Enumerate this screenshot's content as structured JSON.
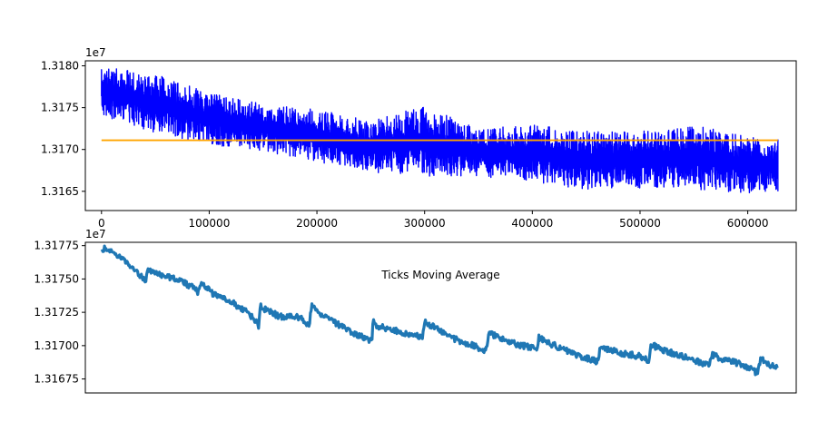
{
  "chart_data": [
    {
      "type": "line",
      "title": "",
      "xlabel": "",
      "ylabel": "",
      "offset_label": "1e7",
      "xlim": [
        -15000,
        645000
      ],
      "ylim": [
        1.31627,
        1.31806
      ],
      "x_ticks": [
        0,
        100000,
        200000,
        300000,
        400000,
        500000,
        600000
      ],
      "x_tick_labels": [
        "0",
        "100000",
        "200000",
        "300000",
        "400000",
        "500000",
        "600000"
      ],
      "y_ticks": [
        1.3165,
        1.317,
        1.3175,
        1.318
      ],
      "y_tick_labels": [
        "1.3165",
        "1.3170",
        "1.3175",
        "1.3180"
      ],
      "grid": false,
      "series": [
        {
          "color": "#0000ff",
          "style": "band",
          "x": [
            0,
            50000,
            100000,
            150000,
            200000,
            250000,
            300000,
            350000,
            400000,
            450000,
            500000,
            550000,
            600000,
            628000
          ],
          "low": [
            1.3174,
            1.3172,
            1.31706,
            1.31698,
            1.31685,
            1.31672,
            1.31668,
            1.31668,
            1.3166,
            1.31652,
            1.31654,
            1.31652,
            1.31648,
            1.3165
          ],
          "high": [
            1.318,
            1.3179,
            1.31768,
            1.31755,
            1.31748,
            1.31735,
            1.31752,
            1.31725,
            1.3173,
            1.31722,
            1.31722,
            1.3173,
            1.31715,
            1.31712
          ]
        },
        {
          "color": "#ffa500",
          "style": "line",
          "x": [
            0,
            628000
          ],
          "y": [
            1.31711,
            1.31711
          ]
        }
      ]
    },
    {
      "type": "line",
      "title": "Ticks Moving Average",
      "xlabel": "",
      "ylabel": "",
      "offset_label": "1e7",
      "xlim": [
        -15000,
        645000
      ],
      "ylim": [
        1.316645,
        1.317775
      ],
      "y_ticks": [
        1.31675,
        1.317,
        1.31725,
        1.3175,
        1.31775
      ],
      "y_tick_labels": [
        "1.31675",
        "1.31700",
        "1.31725",
        "1.31750",
        "1.31775"
      ],
      "grid": false,
      "series": [
        {
          "color": "#1f77b4",
          "x": [
            0,
            3000,
            10000,
            20000,
            30000,
            40000,
            41000,
            42000,
            45000,
            55000,
            70000,
            88000,
            89000,
            91000,
            95000,
            105000,
            120000,
            135000,
            145000,
            146000,
            147000,
            150000,
            165000,
            185000,
            192000,
            193000,
            195000,
            200000,
            215000,
            230000,
            250000,
            251000,
            252000,
            255000,
            270000,
            290000,
            297000,
            298000,
            300000,
            310000,
            325000,
            345000,
            356000,
            357000,
            360000,
            370000,
            385000,
            403000,
            404000,
            406000,
            415000,
            430000,
            445000,
            460000,
            461000,
            463000,
            470000,
            485000,
            500000,
            507000,
            508000,
            510000,
            520000,
            535000,
            550000,
            563000,
            564000,
            567000,
            580000,
            595000,
            608000,
            609000,
            612000,
            620000,
            628000
          ],
          "y": [
            1.31772,
            1.31773,
            1.3177,
            1.31765,
            1.31757,
            1.3175,
            1.31745,
            1.31755,
            1.31756,
            1.31753,
            1.3175,
            1.31742,
            1.31738,
            1.31746,
            1.31745,
            1.31738,
            1.31733,
            1.31725,
            1.31717,
            1.31714,
            1.3173,
            1.31728,
            1.31722,
            1.31721,
            1.31716,
            1.31716,
            1.3173,
            1.31725,
            1.31718,
            1.31711,
            1.31704,
            1.31704,
            1.31718,
            1.31715,
            1.31712,
            1.31708,
            1.31706,
            1.31706,
            1.31718,
            1.31713,
            1.31706,
            1.317,
            1.31696,
            1.31696,
            1.31709,
            1.31706,
            1.31701,
            1.31698,
            1.31696,
            1.31706,
            1.31702,
            1.31697,
            1.31692,
            1.31688,
            1.31688,
            1.317,
            1.31697,
            1.31694,
            1.31692,
            1.31689,
            1.31689,
            1.31701,
            1.31697,
            1.31693,
            1.31689,
            1.31685,
            1.31685,
            1.31693,
            1.31689,
            1.31686,
            1.3168,
            1.3168,
            1.3169,
            1.31686,
            1.31683
          ]
        }
      ]
    }
  ]
}
